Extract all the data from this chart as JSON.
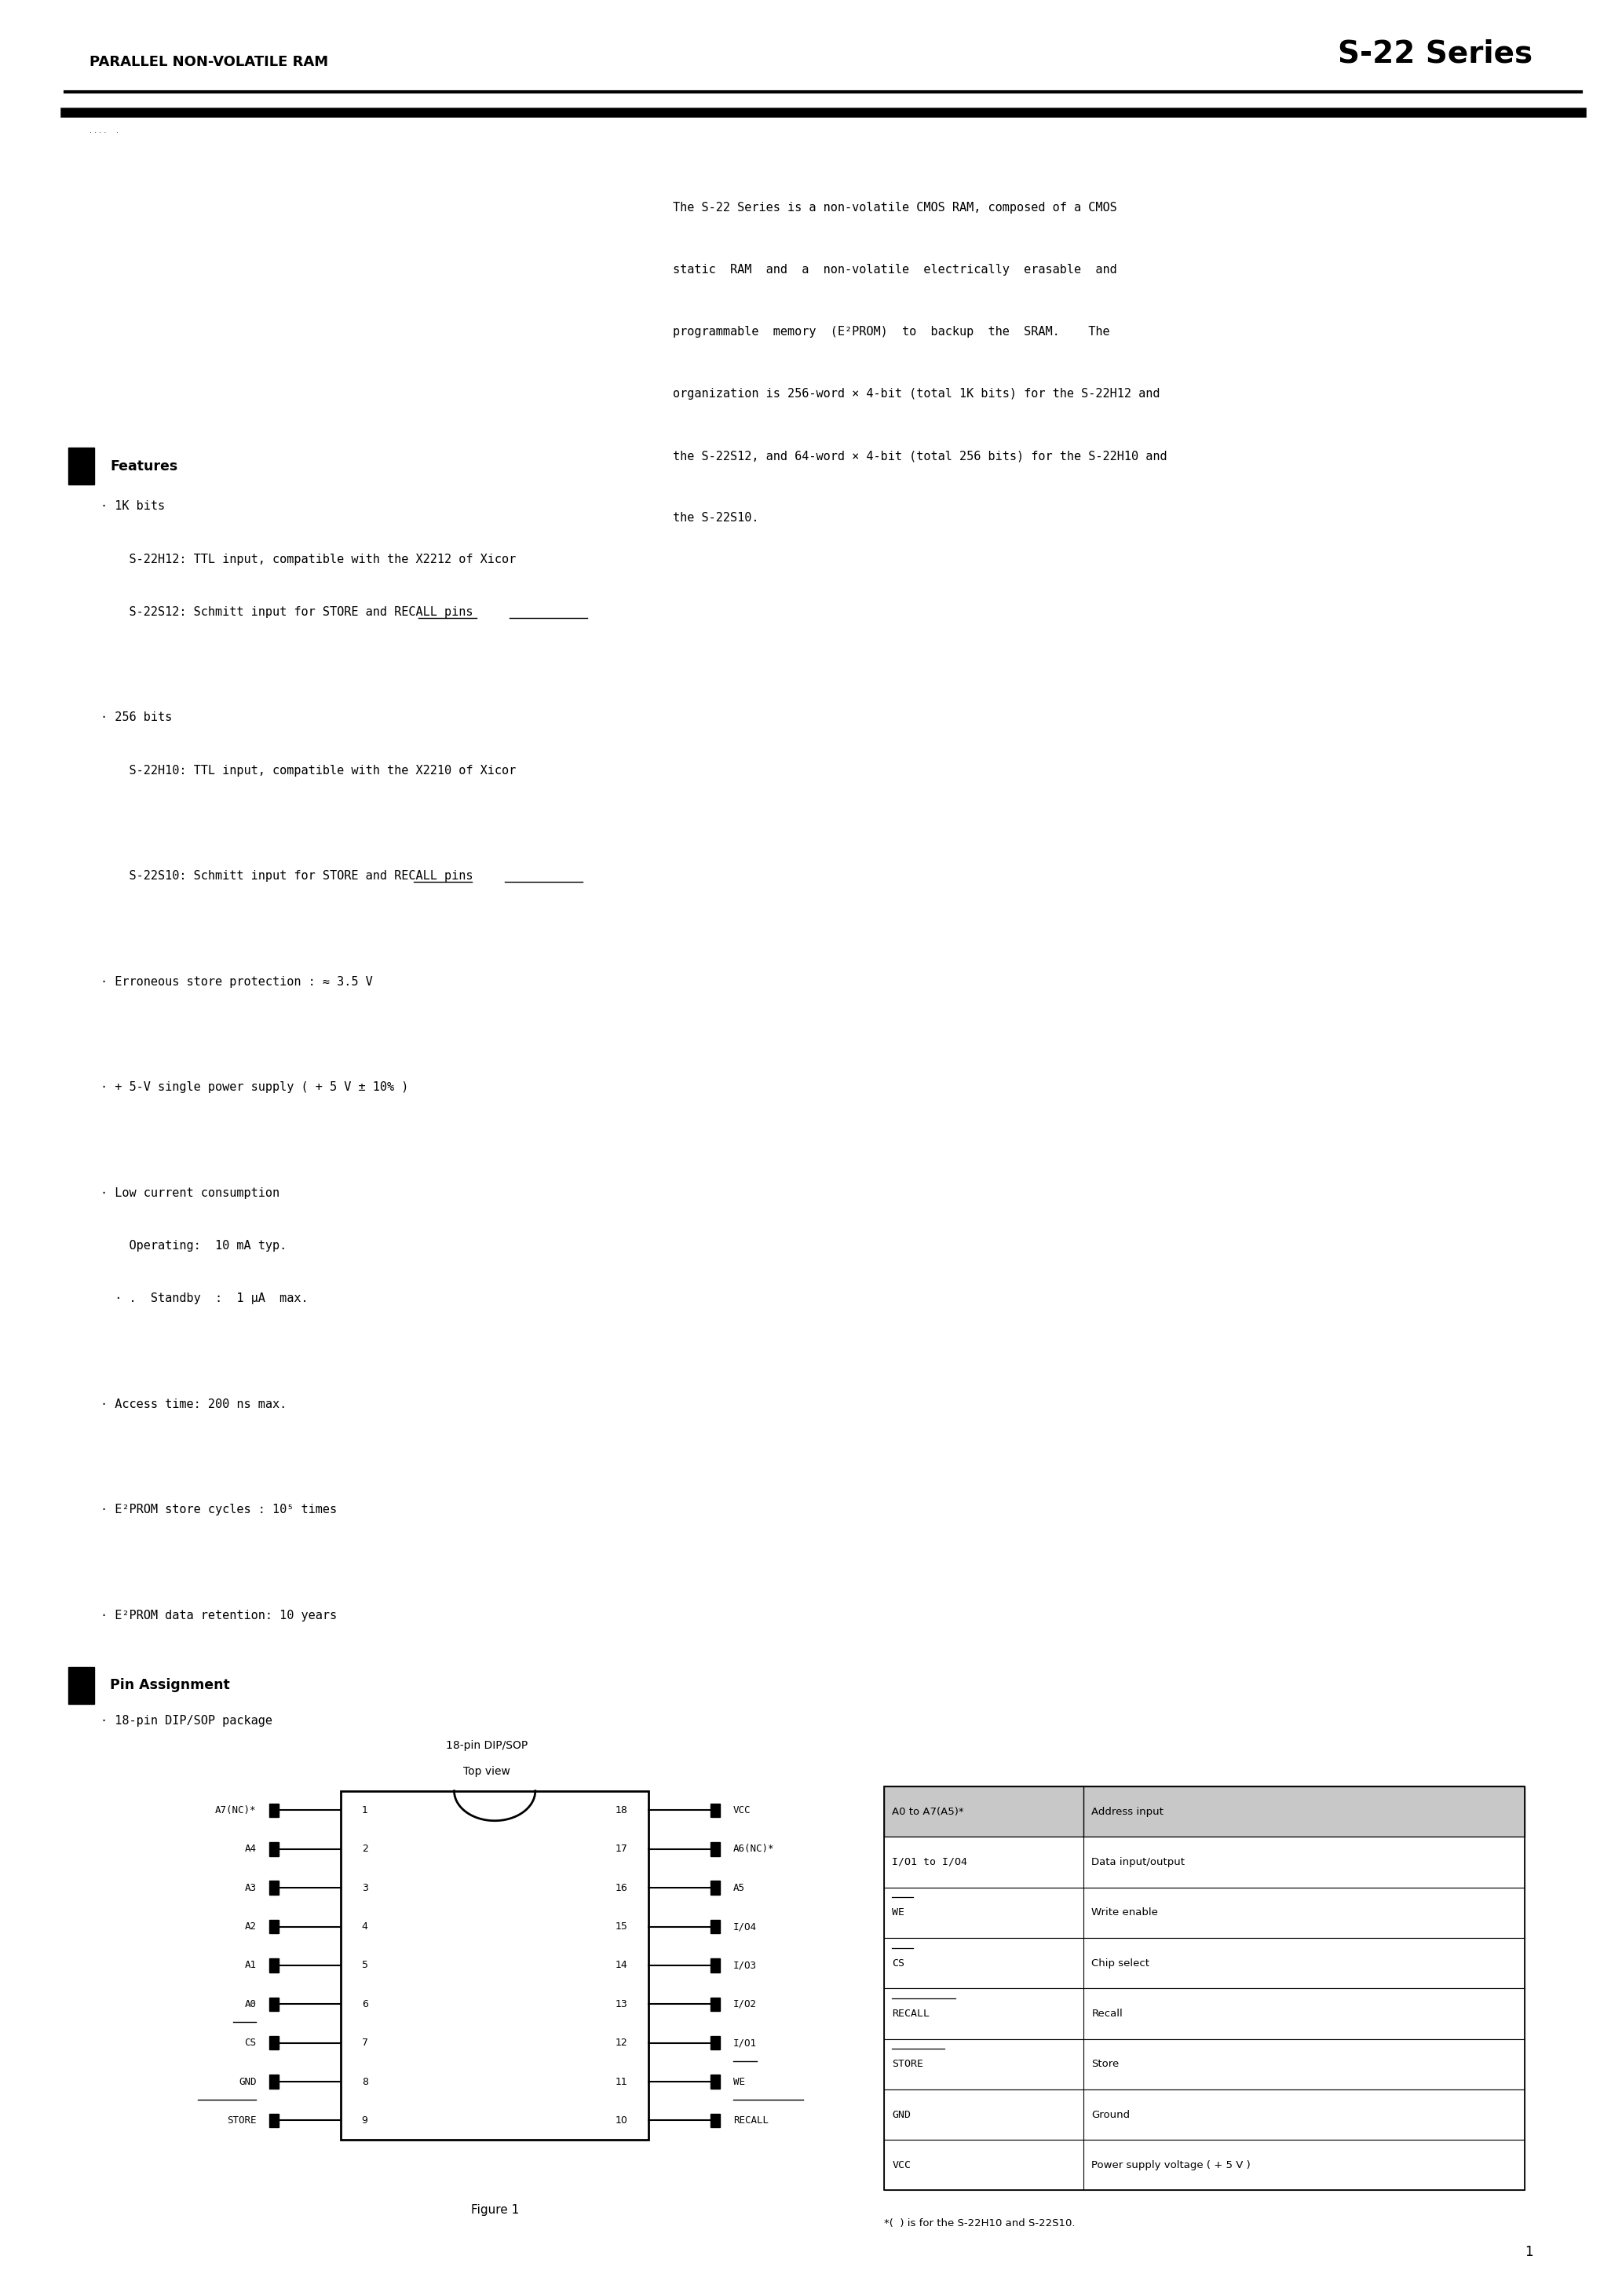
{
  "page_title_left": "PARALLEL NON-VOLATILE RAM",
  "page_title_right": "S-22 Series",
  "intro_text": [
    "The S-22 Series is a non-volatile CMOS RAM, composed of a CMOS",
    "static  RAM  and  a  non-volatile  electrically  erasable  and",
    "programmable  memory  (E²PROM)  to  backup  the  SRAM.    The",
    "organization is 256-word × 4-bit (total 1K bits) for the S-22H12 and",
    "the S-22S12, and 64-word × 4-bit (total 256 bits) for the S-22H10 and",
    "the S-22S10."
  ],
  "features_title": "Features",
  "features": [
    "· 1K bits",
    "    S-22H12: TTL input, compatible with the X2212 of Xicor",
    "    S-22S12: Schmitt input for STORE and RECALL pins",
    "",
    "· 256 bits",
    "    S-22H10: TTL input, compatible with the X2210 of Xicor",
    "",
    "    S-22S10: Schmitt input for STORE and RECALL pins",
    "",
    "· Erroneous store protection : ≈ 3.5 V",
    "",
    "· + 5-V single power supply ( + 5 V ± 10% )",
    "",
    "· Low current consumption",
    "    Operating:  10 mA typ.",
    "  · .  Standby  :  1 μA  max.",
    "",
    "· Access time: 200 ns max.",
    "",
    "· E²PROM store cycles : 10⁵ times",
    "",
    "· E²PROM data retention: 10 years",
    "",
    "· 18-pin DIP/SOP package"
  ],
  "pin_title": "Pin Assignment",
  "pin_subtitle1": "18-pin DIP/SOP",
  "pin_subtitle2": "Top view",
  "left_pins": [
    {
      "num": 1,
      "name": "A7(NC)*"
    },
    {
      "num": 2,
      "name": "A4"
    },
    {
      "num": 3,
      "name": "A3"
    },
    {
      "num": 4,
      "name": "A2"
    },
    {
      "num": 5,
      "name": "A1"
    },
    {
      "num": 6,
      "name": "A0"
    },
    {
      "num": 7,
      "name": "CS"
    },
    {
      "num": 8,
      "name": "GND"
    },
    {
      "num": 9,
      "name": "STORE"
    }
  ],
  "right_pins": [
    {
      "num": 18,
      "name": "VCC"
    },
    {
      "num": 17,
      "name": "A6(NC)*"
    },
    {
      "num": 16,
      "name": "A5"
    },
    {
      "num": 15,
      "name": "I/O4"
    },
    {
      "num": 14,
      "name": "I/O3"
    },
    {
      "num": 13,
      "name": "I/O2"
    },
    {
      "num": 12,
      "name": "I/O1"
    },
    {
      "num": 11,
      "name": "WE"
    },
    {
      "num": 10,
      "name": "RECALL"
    }
  ],
  "table_headers": [
    "A0 to A7(A5)*",
    "Address input"
  ],
  "table_rows": [
    [
      "I/O1 to I/O4",
      "Data input/output"
    ],
    [
      "WE",
      "Write enable"
    ],
    [
      "CS",
      "Chip select"
    ],
    [
      "RECALL",
      "Recall"
    ],
    [
      "STORE",
      "Store"
    ],
    [
      "GND",
      "Ground"
    ],
    [
      "VCC",
      "Power supply voltage ( + 5 V )"
    ]
  ],
  "table_overline": [
    "WE",
    "CS",
    "RECALL",
    "STORE"
  ],
  "table_note": "*(  ) is for the S-22H10 and S-22S10.",
  "figure_caption": "Figure 1",
  "page_number": "1",
  "bg_color": "#ffffff"
}
